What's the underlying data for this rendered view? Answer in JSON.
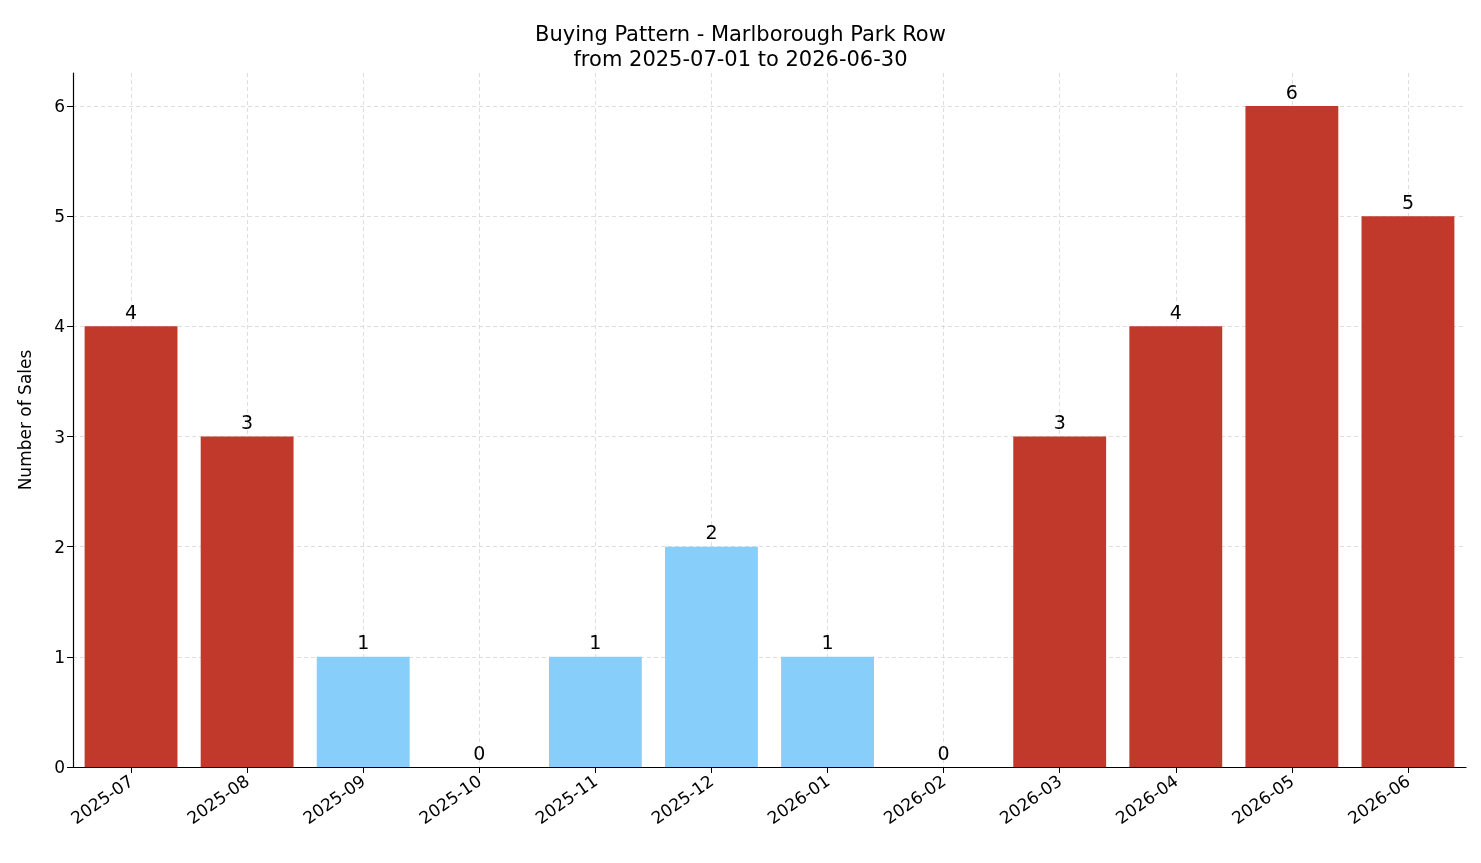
{
  "chart_data": {
    "type": "bar",
    "title": "Buying Pattern - Marlborough Park Row",
    "subtitle": "from 2025-07-01 to 2026-06-30",
    "ylabel": "Number of Sales",
    "categories": [
      "2025-07",
      "2025-08",
      "2025-09",
      "2025-10",
      "2025-11",
      "2025-12",
      "2026-01",
      "2026-02",
      "2026-03",
      "2026-04",
      "2026-05",
      "2026-06"
    ],
    "values": [
      4,
      3,
      1,
      0,
      1,
      2,
      1,
      0,
      3,
      4,
      6,
      5
    ],
    "colors": [
      "#c0392b",
      "#c0392b",
      "#87cefa",
      "#87cefa",
      "#87cefa",
      "#87cefa",
      "#87cefa",
      "#87cefa",
      "#c0392b",
      "#c0392b",
      "#c0392b",
      "#c0392b"
    ],
    "ylim": [
      0,
      6.3
    ],
    "yticks": [
      0,
      1,
      2,
      3,
      4,
      5,
      6
    ],
    "grid": true,
    "data_labels": true
  }
}
